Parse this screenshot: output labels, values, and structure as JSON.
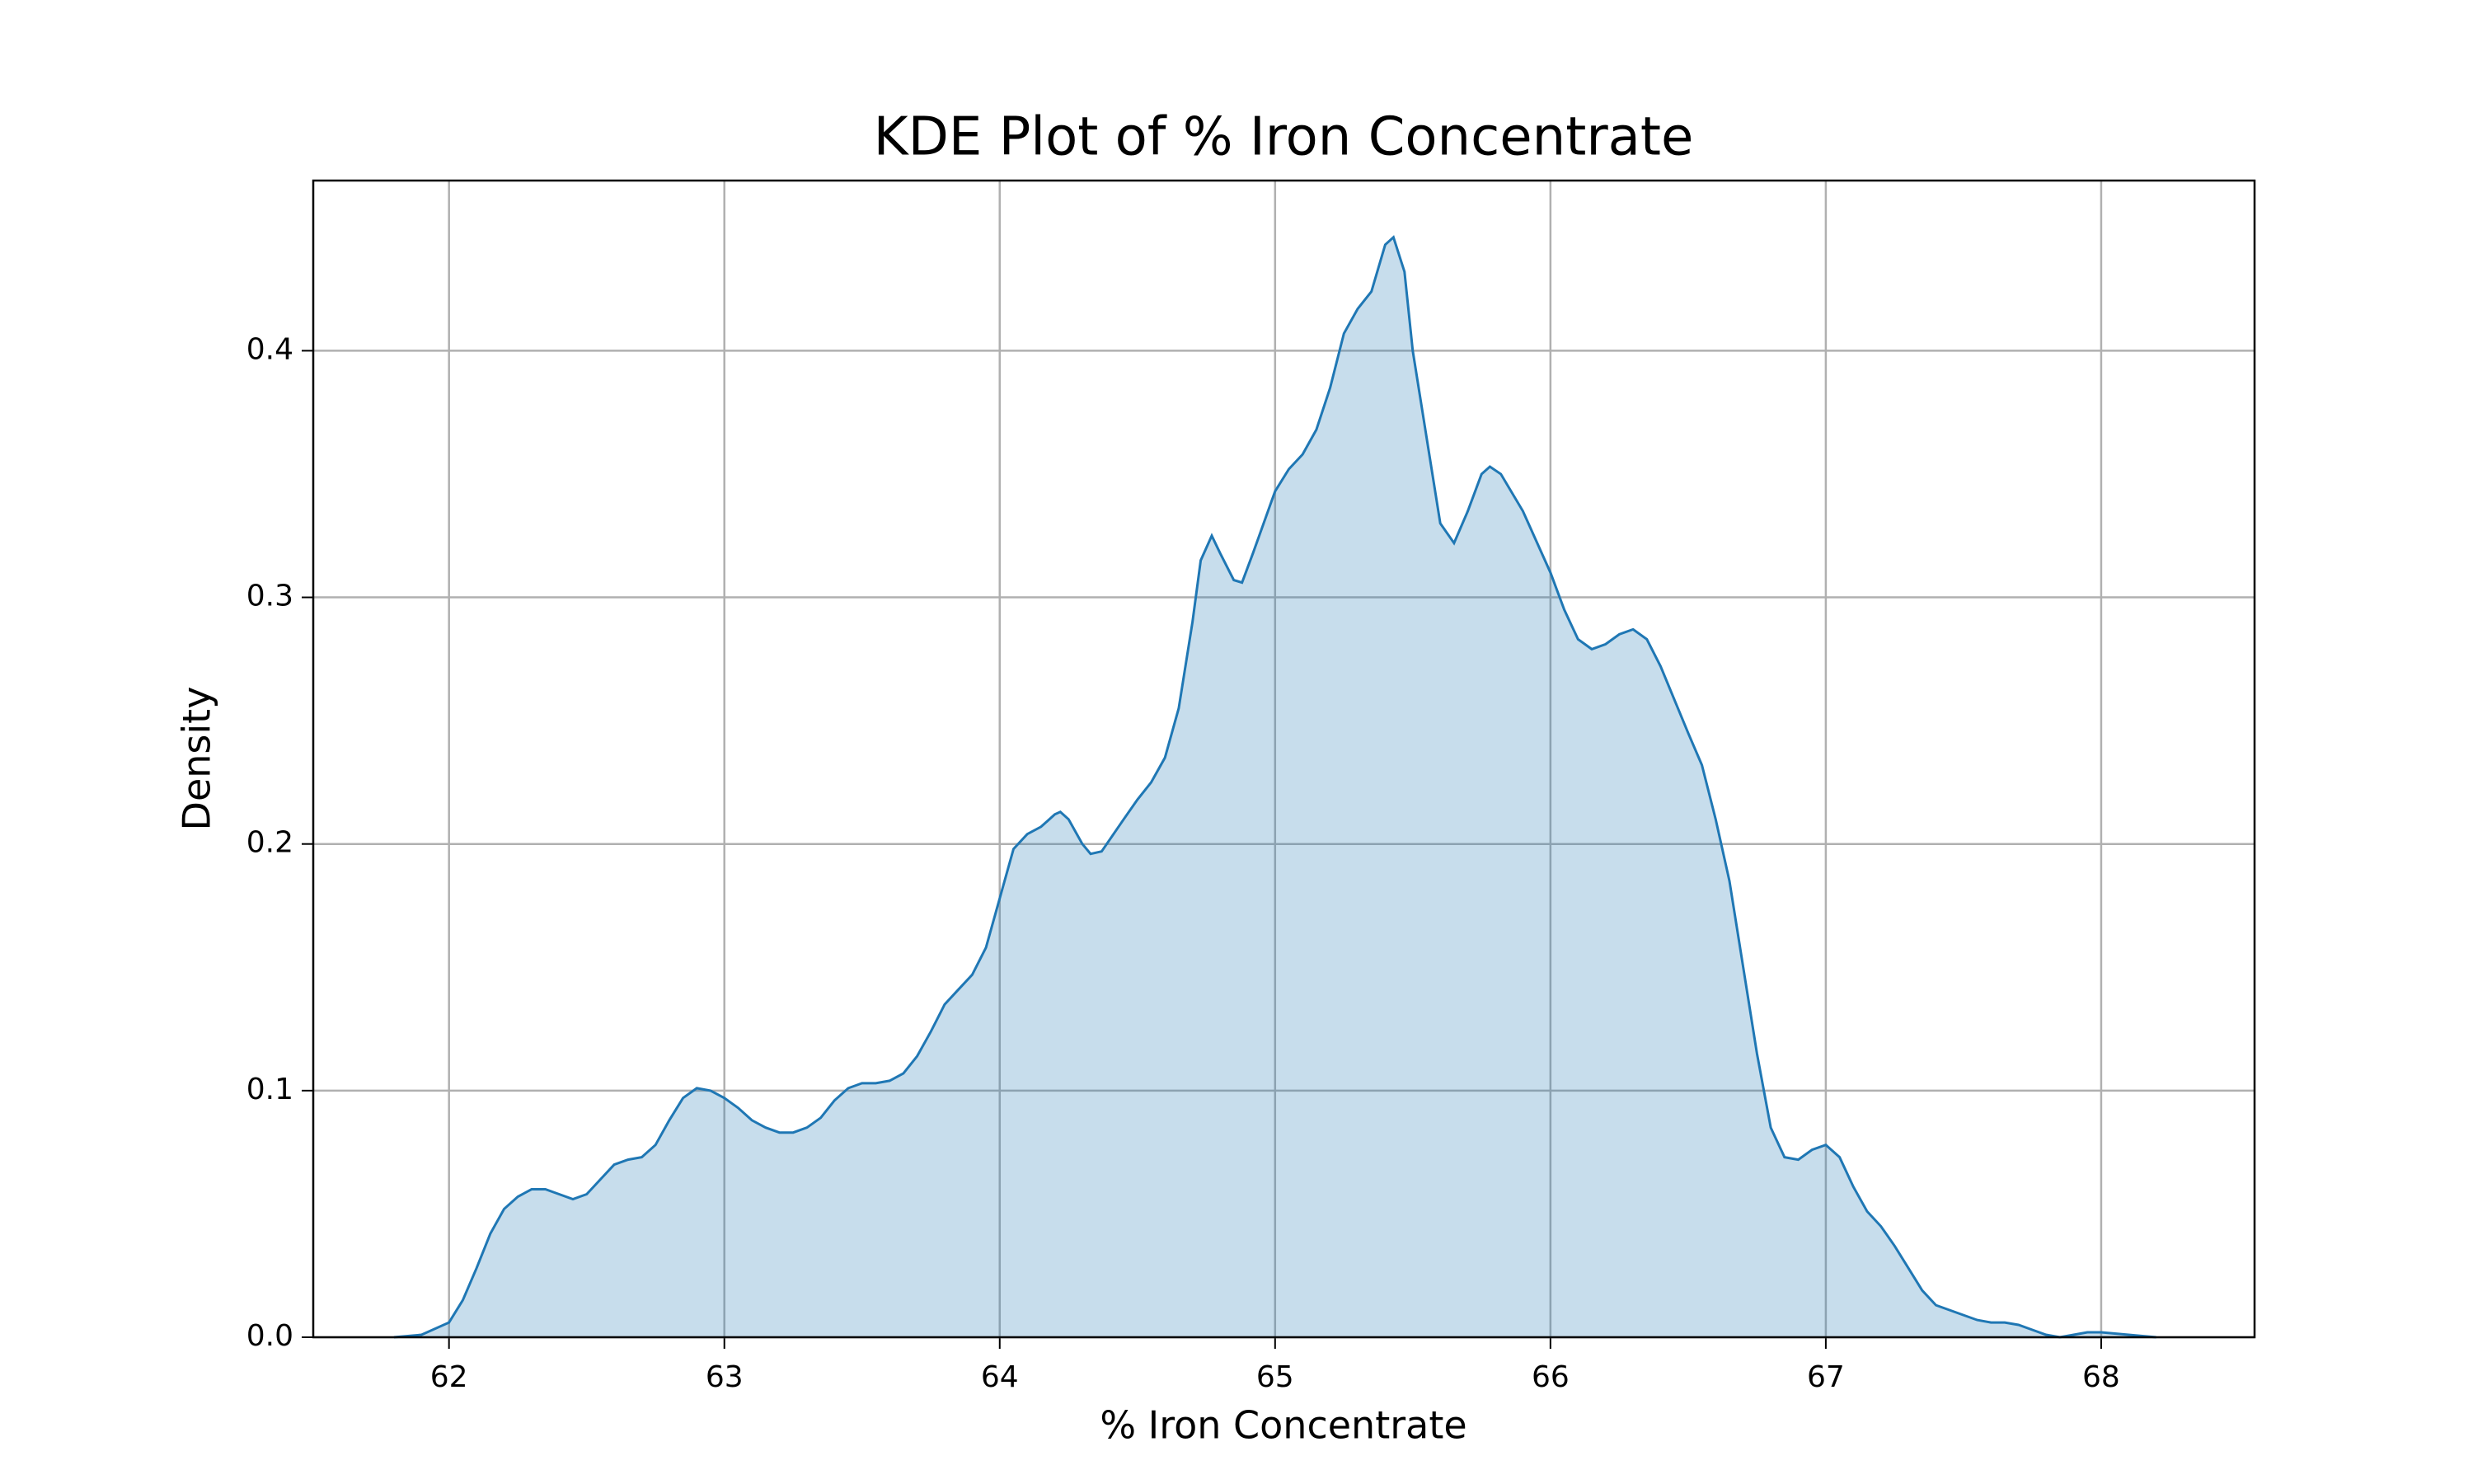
{
  "chart_data": {
    "type": "area",
    "title": "KDE Plot of % Iron Concentrate",
    "x_label": "% Iron Concentrate",
    "y_label": "Density",
    "color": "#1f77b4",
    "grid": true,
    "xlim": [
      61.507,
      68.557
    ],
    "ylim": [
      0,
      0.469
    ],
    "xticks": [
      62,
      63,
      64,
      65,
      66,
      67,
      68
    ],
    "yticks": [
      {
        "value": 0,
        "label": "0.0"
      },
      0.1,
      0.2,
      0.3,
      0.4
    ],
    "x": [
      61.8,
      61.9,
      62.0,
      62.05,
      62.1,
      62.15,
      62.2,
      62.25,
      62.3,
      62.35,
      62.4,
      62.45,
      62.5,
      62.55,
      62.6,
      62.65,
      62.7,
      62.75,
      62.8,
      62.85,
      62.9,
      62.95,
      63.0,
      63.05,
      63.1,
      63.15,
      63.2,
      63.25,
      63.3,
      63.35,
      63.4,
      63.45,
      63.5,
      63.55,
      63.6,
      63.65,
      63.7,
      63.75,
      63.8,
      63.85,
      63.9,
      63.95,
      64.0,
      64.05,
      64.1,
      64.15,
      64.2,
      64.22,
      64.25,
      64.3,
      64.33,
      64.37,
      64.45,
      64.5,
      64.55,
      64.6,
      64.65,
      64.7,
      64.73,
      64.77,
      64.8,
      64.85,
      64.88,
      64.92,
      65.0,
      65.05,
      65.1,
      65.15,
      65.2,
      65.25,
      65.3,
      65.35,
      65.4,
      65.43,
      65.47,
      65.5,
      65.55,
      65.6,
      65.65,
      65.7,
      65.75,
      65.78,
      65.82,
      65.9,
      66.0,
      66.05,
      66.1,
      66.15,
      66.2,
      66.25,
      66.3,
      66.35,
      66.4,
      66.5,
      66.55,
      66.6,
      66.65,
      66.7,
      66.75,
      66.8,
      66.85,
      66.9,
      66.95,
      67.0,
      67.05,
      67.1,
      67.15,
      67.2,
      67.25,
      67.3,
      67.35,
      67.4,
      67.45,
      67.5,
      67.55,
      67.6,
      67.65,
      67.7,
      67.75,
      67.8,
      67.85,
      67.9,
      67.95,
      68.0,
      68.1,
      68.2
    ],
    "y": [
      0,
      0.001,
      0.006,
      0.015,
      0.028,
      0.042,
      0.052,
      0.057,
      0.06,
      0.06,
      0.058,
      0.056,
      0.058,
      0.064,
      0.07,
      0.072,
      0.073,
      0.078,
      0.088,
      0.097,
      0.101,
      0.1,
      0.097,
      0.093,
      0.088,
      0.085,
      0.083,
      0.083,
      0.085,
      0.089,
      0.096,
      0.101,
      0.103,
      0.103,
      0.104,
      0.107,
      0.114,
      0.124,
      0.135,
      0.141,
      0.147,
      0.158,
      0.178,
      0.198,
      0.204,
      0.207,
      0.212,
      0.213,
      0.21,
      0.2,
      0.196,
      0.197,
      0.21,
      0.218,
      0.225,
      0.235,
      0.255,
      0.29,
      0.315,
      0.325,
      0.318,
      0.307,
      0.306,
      0.318,
      0.343,
      0.352,
      0.358,
      0.368,
      0.385,
      0.407,
      0.417,
      0.424,
      0.443,
      0.446,
      0.432,
      0.4,
      0.365,
      0.33,
      0.322,
      0.335,
      0.35,
      0.353,
      0.35,
      0.335,
      0.31,
      0.295,
      0.283,
      0.279,
      0.281,
      0.285,
      0.287,
      0.283,
      0.272,
      0.245,
      0.232,
      0.21,
      0.185,
      0.15,
      0.115,
      0.085,
      0.073,
      0.072,
      0.076,
      0.078,
      0.073,
      0.061,
      0.051,
      0.045,
      0.037,
      0.028,
      0.019,
      0.013,
      0.011,
      0.009,
      0.007,
      0.006,
      0.006,
      0.005,
      0.003,
      0.001,
      0,
      0.001,
      0.002,
      0.002,
      0.001,
      0
    ]
  }
}
